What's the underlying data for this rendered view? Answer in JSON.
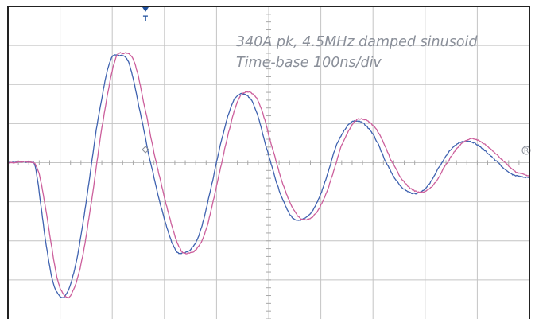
{
  "chart_data": {
    "type": "line",
    "title": "",
    "xlabel": "",
    "ylabel": "",
    "grid": true,
    "divisions": {
      "x": 10,
      "y": 8
    },
    "xlim": [
      0,
      10
    ],
    "ylim": [
      -4,
      4
    ],
    "annotations": [
      "340A pk, 4.5MHz damped sinusoid",
      "Time-base 100ns/div"
    ],
    "trigger_marker": "T",
    "ref_marker": "R",
    "colors": {
      "grid": "#c4c4c4",
      "frame": "#222222",
      "blue_trace": "#3f62b0",
      "pink_trace": "#cc5f9c",
      "marker": "#1e4f9c"
    },
    "series": [
      {
        "color": "#3f62b0",
        "x": [
          0,
          0.5,
          0.55,
          0.62,
          0.72,
          0.85,
          1.0,
          1.12,
          1.3,
          1.5,
          1.7,
          1.95,
          2.15,
          2.25,
          2.35,
          2.5,
          2.7,
          2.95,
          3.2,
          3.4,
          3.55,
          3.7,
          3.9,
          4.1,
          4.3,
          4.45,
          4.6,
          4.75,
          4.95,
          5.2,
          5.45,
          5.65,
          5.8,
          5.95,
          6.1,
          6.3,
          6.55,
          6.75,
          6.9,
          7.05,
          7.25,
          7.5,
          7.75,
          7.95,
          8.1,
          8.25,
          8.5,
          8.75,
          8.95,
          9.15,
          9.4,
          9.6,
          9.8,
          10
        ],
        "y": [
          0,
          0,
          -0.3,
          -1.0,
          -2.0,
          -3.0,
          -3.42,
          -3.35,
          -2.6,
          -1.0,
          0.9,
          2.55,
          2.74,
          2.7,
          2.4,
          1.5,
          0.2,
          -1.2,
          -2.2,
          -2.3,
          -2.15,
          -1.7,
          -0.6,
          0.6,
          1.5,
          1.75,
          1.7,
          1.35,
          0.4,
          -0.7,
          -1.4,
          -1.45,
          -1.3,
          -0.95,
          -0.4,
          0.45,
          1.0,
          1.05,
          0.9,
          0.6,
          0.0,
          -0.55,
          -0.78,
          -0.72,
          -0.5,
          -0.15,
          0.35,
          0.55,
          0.5,
          0.3,
          0.0,
          -0.25,
          -0.35,
          -0.38
        ]
      },
      {
        "color": "#cc5f9c",
        "x": [
          0,
          0.5,
          0.6,
          0.7,
          0.82,
          0.95,
          1.1,
          1.22,
          1.4,
          1.6,
          1.8,
          2.05,
          2.25,
          2.35,
          2.45,
          2.6,
          2.8,
          3.05,
          3.3,
          3.5,
          3.65,
          3.8,
          4.0,
          4.2,
          4.4,
          4.55,
          4.7,
          4.85,
          5.05,
          5.3,
          5.55,
          5.75,
          5.9,
          6.05,
          6.2,
          6.4,
          6.65,
          6.85,
          7.0,
          7.15,
          7.35,
          7.6,
          7.85,
          8.05,
          8.2,
          8.35,
          8.6,
          8.85,
          9.05,
          9.25,
          9.5,
          9.7,
          9.9,
          10
        ],
        "y": [
          0,
          0,
          -0.3,
          -1.0,
          -2.0,
          -3.0,
          -3.42,
          -3.35,
          -2.6,
          -1.0,
          0.9,
          2.6,
          2.8,
          2.75,
          2.45,
          1.55,
          0.25,
          -1.15,
          -2.2,
          -2.3,
          -2.15,
          -1.7,
          -0.6,
          0.6,
          1.55,
          1.8,
          1.75,
          1.4,
          0.45,
          -0.65,
          -1.35,
          -1.45,
          -1.3,
          -0.95,
          -0.4,
          0.45,
          1.05,
          1.1,
          0.95,
          0.65,
          0.05,
          -0.5,
          -0.75,
          -0.7,
          -0.5,
          -0.15,
          0.35,
          0.6,
          0.55,
          0.35,
          0.05,
          -0.2,
          -0.3,
          -0.35
        ]
      }
    ]
  }
}
